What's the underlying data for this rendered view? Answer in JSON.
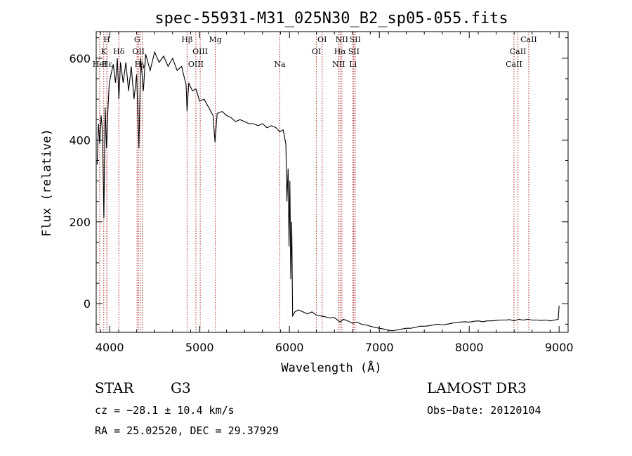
{
  "chart_data": {
    "type": "line",
    "title": "spec-55931-M31_025N30_B2_sp05-055.fits",
    "xlabel": "Wavelength (Å)",
    "ylabel": "Flux (relative)",
    "xlim": [
      3850,
      9100
    ],
    "ylim": [
      -70,
      665
    ],
    "x_ticks": [
      4000,
      5000,
      6000,
      7000,
      8000,
      9000
    ],
    "x_tick_labels": [
      "4000",
      "5000",
      "6000",
      "7000",
      "8000",
      "9000"
    ],
    "y_ticks": [
      0,
      200,
      400,
      600
    ],
    "y_tick_labels": [
      "0",
      "200",
      "400",
      "600"
    ],
    "series": [
      {
        "name": "flux",
        "color": "#000000",
        "points": [
          [
            3860,
            340
          ],
          [
            3875,
            440
          ],
          [
            3890,
            390
          ],
          [
            3905,
            460
          ],
          [
            3920,
            420
          ],
          [
            3935,
            210
          ],
          [
            3950,
            480
          ],
          [
            3965,
            380
          ],
          [
            3980,
            470
          ],
          [
            3995,
            540
          ],
          [
            4015,
            560
          ],
          [
            4040,
            585
          ],
          [
            4065,
            540
          ],
          [
            4085,
            600
          ],
          [
            4102,
            500
          ],
          [
            4120,
            590
          ],
          [
            4150,
            540
          ],
          [
            4180,
            590
          ],
          [
            4210,
            520
          ],
          [
            4240,
            580
          ],
          [
            4270,
            500
          ],
          [
            4300,
            560
          ],
          [
            4325,
            380
          ],
          [
            4345,
            600
          ],
          [
            4375,
            520
          ],
          [
            4400,
            610
          ],
          [
            4450,
            570
          ],
          [
            4500,
            615
          ],
          [
            4550,
            590
          ],
          [
            4600,
            605
          ],
          [
            4650,
            580
          ],
          [
            4700,
            600
          ],
          [
            4750,
            570
          ],
          [
            4800,
            580
          ],
          [
            4850,
            535
          ],
          [
            4861,
            470
          ],
          [
            4880,
            540
          ],
          [
            4920,
            520
          ],
          [
            4960,
            525
          ],
          [
            5000,
            495
          ],
          [
            5050,
            500
          ],
          [
            5100,
            480
          ],
          [
            5150,
            460
          ],
          [
            5172,
            395
          ],
          [
            5195,
            465
          ],
          [
            5250,
            470
          ],
          [
            5300,
            460
          ],
          [
            5350,
            455
          ],
          [
            5400,
            445
          ],
          [
            5450,
            450
          ],
          [
            5500,
            445
          ],
          [
            5550,
            440
          ],
          [
            5600,
            440
          ],
          [
            5650,
            435
          ],
          [
            5700,
            440
          ],
          [
            5750,
            430
          ],
          [
            5800,
            435
          ],
          [
            5850,
            430
          ],
          [
            5893,
            420
          ],
          [
            5930,
            425
          ],
          [
            5960,
            390
          ],
          [
            5972,
            250
          ],
          [
            5985,
            330
          ],
          [
            5995,
            140
          ],
          [
            6005,
            300
          ],
          [
            6015,
            60
          ],
          [
            6025,
            200
          ],
          [
            6035,
            -30
          ],
          [
            6060,
            -20
          ],
          [
            6100,
            -15
          ],
          [
            6150,
            -20
          ],
          [
            6200,
            -25
          ],
          [
            6250,
            -20
          ],
          [
            6300,
            -28
          ],
          [
            6350,
            -30
          ],
          [
            6400,
            -32
          ],
          [
            6450,
            -35
          ],
          [
            6500,
            -34
          ],
          [
            6563,
            -45
          ],
          [
            6600,
            -38
          ],
          [
            6650,
            -42
          ],
          [
            6700,
            -48
          ],
          [
            6750,
            -45
          ],
          [
            6800,
            -50
          ],
          [
            6850,
            -52
          ],
          [
            6900,
            -55
          ],
          [
            6950,
            -58
          ],
          [
            7000,
            -60
          ],
          [
            7050,
            -62
          ],
          [
            7100,
            -65
          ],
          [
            7150,
            -66
          ],
          [
            7200,
            -64
          ],
          [
            7250,
            -62
          ],
          [
            7300,
            -60
          ],
          [
            7350,
            -60
          ],
          [
            7400,
            -58
          ],
          [
            7450,
            -55
          ],
          [
            7500,
            -55
          ],
          [
            7550,
            -54
          ],
          [
            7600,
            -52
          ],
          [
            7650,
            -50
          ],
          [
            7700,
            -52
          ],
          [
            7750,
            -50
          ],
          [
            7800,
            -48
          ],
          [
            7850,
            -46
          ],
          [
            7900,
            -45
          ],
          [
            7950,
            -44
          ],
          [
            8000,
            -45
          ],
          [
            8050,
            -43
          ],
          [
            8100,
            -42
          ],
          [
            8150,
            -44
          ],
          [
            8200,
            -42
          ],
          [
            8250,
            -42
          ],
          [
            8300,
            -41
          ],
          [
            8350,
            -40
          ],
          [
            8400,
            -40
          ],
          [
            8450,
            -39
          ],
          [
            8500,
            -42
          ],
          [
            8550,
            -38
          ],
          [
            8600,
            -40
          ],
          [
            8650,
            -38
          ],
          [
            8700,
            -40
          ],
          [
            8750,
            -40
          ],
          [
            8800,
            -41
          ],
          [
            8850,
            -40
          ],
          [
            8900,
            -42
          ],
          [
            8950,
            -40
          ],
          [
            8990,
            -38
          ],
          [
            9000,
            -5
          ]
        ]
      }
    ],
    "line_markers": [
      {
        "wave": 3889,
        "label": "HeI",
        "row": 2
      },
      {
        "wave": 3934,
        "label": "K",
        "row": 1
      },
      {
        "wave": 3968,
        "label": "H",
        "row": 0
      },
      {
        "wave": 3970,
        "label": "Hε",
        "row": 2
      },
      {
        "wave": 4102,
        "label": "Hδ",
        "row": 1
      },
      {
        "wave": 4305,
        "label": "G",
        "row": 0
      },
      {
        "wave": 4320,
        "label": "OII",
        "row": 1
      },
      {
        "wave": 4340,
        "label": "Hγ",
        "row": 2
      },
      {
        "wave": 4363,
        "label": "",
        "row": 1
      },
      {
        "wave": 4861,
        "label": "Hβ",
        "row": 0
      },
      {
        "wave": 4959,
        "label": "OIII",
        "row": 2
      },
      {
        "wave": 5007,
        "label": "OIII",
        "row": 1
      },
      {
        "wave": 5175,
        "label": "Mg",
        "row": 0
      },
      {
        "wave": 5893,
        "label": "Na",
        "row": 2
      },
      {
        "wave": 6300,
        "label": "OI",
        "row": 1
      },
      {
        "wave": 6364,
        "label": "OI",
        "row": 0
      },
      {
        "wave": 6548,
        "label": "NII",
        "row": 2
      },
      {
        "wave": 6563,
        "label": "Hα",
        "row": 1
      },
      {
        "wave": 6583,
        "label": "NII",
        "row": 0
      },
      {
        "wave": 6707,
        "label": "Li",
        "row": 2
      },
      {
        "wave": 6716,
        "label": "SII",
        "row": 1
      },
      {
        "wave": 6731,
        "label": "SII",
        "row": 0
      },
      {
        "wave": 8498,
        "label": "CaII",
        "row": 2
      },
      {
        "wave": 8542,
        "label": "CaII",
        "row": 1
      },
      {
        "wave": 8662,
        "label": "CaII",
        "row": 0
      }
    ],
    "marker_color": "#b22222"
  },
  "info": {
    "object_class": "STAR",
    "subclass": "G3",
    "survey": "LAMOST DR3",
    "redshift": "cz = −28.1 ± 10.4 km/s",
    "obs_date": "Obs−Date: 20120104",
    "coords": "RA =  25.02520, DEC =  29.37929"
  }
}
